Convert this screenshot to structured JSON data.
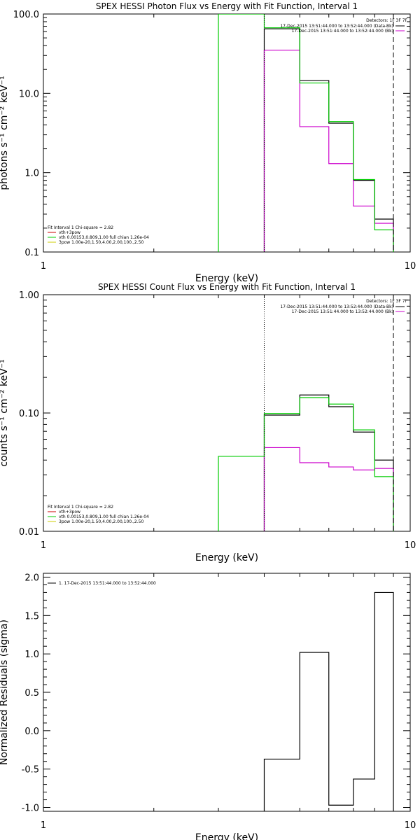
{
  "chart_data": [
    {
      "type": "line",
      "title": "SPEX HESSI Photon Flux vs Energy with Fit Function, Interval 1",
      "xlabel": "Energy (keV)",
      "ylabel": "photons s⁻¹ cm⁻² keV⁻¹",
      "xscale": "log",
      "yscale": "log",
      "xlim": [
        1,
        10
      ],
      "ylim": [
        0.1,
        100
      ],
      "x_ticks": [
        "1",
        "10"
      ],
      "y_ticks": [
        "0.1",
        "1.0",
        "10.0",
        "100.0"
      ],
      "y_tick_values": [
        0.1,
        1,
        10,
        100
      ],
      "bin_edges": [
        3,
        4,
        5,
        6,
        7,
        8,
        9
      ],
      "detectors": "Detectors: 1F 3F 7F",
      "legend_right": [
        "17-Dec-2015 13:51:44.000 to 13:52:44.000 (Data-Bk)",
        "17-Dec-2015 13:51:44.000 to 13:52:44.000 (Bk)"
      ],
      "legend_left": [
        "Fit Interval 1   Chi-square = 2.82",
        "vth+3pow",
        "vth 0.00153,0.809,1.00  full chian 1.26e-04",
        "3pow 1.00e-20,1.50,4.00,2.00,100.,2.50"
      ],
      "series": [
        {
          "name": "Data-Bk",
          "color": "#000000",
          "values": [
            null,
            65,
            14.5,
            4.2,
            0.8,
            0.26
          ]
        },
        {
          "name": "Bk",
          "color": "#cc00cc",
          "values": [
            null,
            35,
            3.8,
            1.3,
            0.38,
            0.23
          ]
        },
        {
          "name": "vth+3pow",
          "color": "#00cc00",
          "values": [
            100,
            67,
            13.5,
            4.4,
            0.82,
            0.19
          ]
        }
      ],
      "vlines": [
        {
          "x": 4,
          "style": "dotted"
        },
        {
          "x": 9,
          "style": "dashed"
        }
      ]
    },
    {
      "type": "line",
      "title": "SPEX HESSI Count Flux vs Energy with Fit Function, Interval 1",
      "xlabel": "Energy (keV)",
      "ylabel": "counts s⁻¹ cm⁻² keV⁻¹",
      "xscale": "log",
      "yscale": "log",
      "xlim": [
        1,
        10
      ],
      "ylim": [
        0.01,
        1
      ],
      "x_ticks": [
        "1",
        "10"
      ],
      "y_ticks": [
        "0.01",
        "0.10",
        "1.00"
      ],
      "y_tick_values": [
        0.01,
        0.1,
        1
      ],
      "bin_edges": [
        3,
        4,
        5,
        6,
        7,
        8,
        9
      ],
      "detectors": "Detectors: 1F 3F 7F",
      "legend_right": [
        "17-Dec-2015 13:51:44.000 to 13:52:44.000 (Data-Bk)",
        "17-Dec-2015 13:51:44.000 to 13:52:44.000 (Bk)"
      ],
      "legend_left": [
        "Fit Interval 1   Chi-square = 2.82",
        "vth+3pow",
        "vth 0.00153,0.809,1.00  full chian 1.26e-04",
        "3pow 1.00e-20,1.50,4.00,2.00,100.,2.50"
      ],
      "series": [
        {
          "name": "Data-Bk",
          "color": "#000000",
          "values": [
            null,
            0.096,
            0.142,
            0.113,
            0.069,
            0.04
          ]
        },
        {
          "name": "Bk",
          "color": "#cc00cc",
          "values": [
            null,
            0.051,
            0.038,
            0.035,
            0.033,
            0.034
          ]
        },
        {
          "name": "vth+3pow",
          "color": "#00cc00",
          "values": [
            0.043,
            0.099,
            0.135,
            0.119,
            0.072,
            0.029
          ]
        }
      ],
      "vlines": [
        {
          "x": 4,
          "style": "dotted"
        },
        {
          "x": 9,
          "style": "dashed"
        }
      ]
    },
    {
      "type": "line",
      "title": "",
      "xlabel": "Energy (keV)",
      "ylabel": "Normalized Residuals (sigma)",
      "xscale": "log",
      "yscale": "linear",
      "xlim": [
        1,
        10
      ],
      "ylim": [
        -1.05,
        2.05
      ],
      "x_ticks": [
        "1",
        "10"
      ],
      "y_ticks": [
        "-1.0",
        "-0.5",
        "0.0",
        "0.5",
        "1.0",
        "1.5",
        "2.0"
      ],
      "y_tick_values": [
        -1,
        -0.5,
        0,
        0.5,
        1,
        1.5,
        2
      ],
      "bin_edges": [
        4,
        5,
        6,
        7,
        8,
        9
      ],
      "legend_left": [
        "1. 17-Dec-2015 13:51:44.000 to 13:52:44.000"
      ],
      "series": [
        {
          "name": "1. 17-Dec-2015 13:51:44.000 to 13:52:44.000",
          "color": "#000000",
          "values": [
            -0.37,
            1.02,
            -0.97,
            -0.63,
            1.8
          ]
        }
      ]
    }
  ]
}
